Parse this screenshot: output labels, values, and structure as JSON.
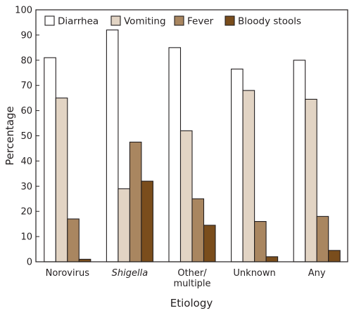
{
  "chart_data": {
    "type": "bar",
    "categories": [
      "Norovirus",
      "Shigella",
      "Other/\nmultiple",
      "Unknown",
      "Any"
    ],
    "category_styles": [
      "normal",
      "italic",
      "normal",
      "normal",
      "normal"
    ],
    "series": [
      {
        "name": "Diarrhea",
        "color": "#ffffff",
        "values": [
          81,
          92,
          85,
          76.5,
          80
        ]
      },
      {
        "name": "Vomiting",
        "color": "#e2d4c4",
        "values": [
          65,
          29,
          52,
          68,
          64.5
        ]
      },
      {
        "name": "Fever",
        "color": "#a98660",
        "values": [
          17,
          47.5,
          25,
          16,
          18
        ]
      },
      {
        "name": "Bloody stools",
        "color": "#7a4d1c",
        "values": [
          1,
          32,
          14.5,
          2,
          4.5
        ]
      }
    ],
    "xlabel": "Etiology",
    "ylabel": "Percentage",
    "ylim": [
      0,
      100
    ],
    "yticks": [
      0,
      10,
      20,
      30,
      40,
      50,
      60,
      70,
      80,
      90,
      100
    ],
    "grid": false,
    "legend_position": "top"
  }
}
